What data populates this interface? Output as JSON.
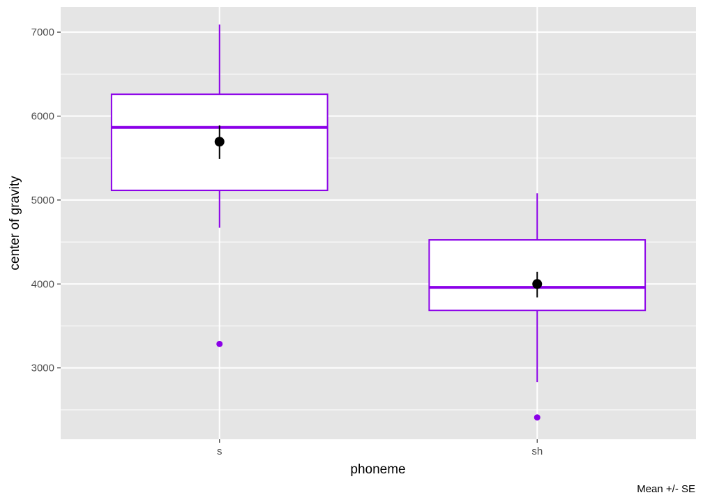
{
  "chart_data": {
    "type": "boxplot",
    "xlabel": "phoneme",
    "ylabel": "center of gravity",
    "caption": "Mean +/- SE",
    "ylim": [
      2150,
      7300
    ],
    "yticks": [
      3000,
      4000,
      5000,
      6000,
      7000
    ],
    "yticks_minor": [
      2500,
      3500,
      4500,
      5500,
      6500
    ],
    "grid": true,
    "categories": [
      "s",
      "sh"
    ],
    "boxes": [
      {
        "category": "s",
        "whisker_low": 4670,
        "q1": 5115,
        "median": 5865,
        "q3": 6260,
        "whisker_high": 7090,
        "outliers": [
          3285
        ],
        "mean": 5695,
        "se_low": 5490,
        "se_high": 5890
      },
      {
        "category": "sh",
        "whisker_low": 2830,
        "q1": 3685,
        "median": 3960,
        "q3": 4525,
        "whisker_high": 5080,
        "outliers": [
          2410
        ],
        "mean": 4000,
        "se_low": 3840,
        "se_high": 4145
      }
    ],
    "colors": {
      "panel_background": "#e5e5e5",
      "grid": "#ffffff",
      "box_outline": "#8b00e8",
      "box_fill": "#ffffff",
      "mean_marker": "#000000"
    }
  }
}
